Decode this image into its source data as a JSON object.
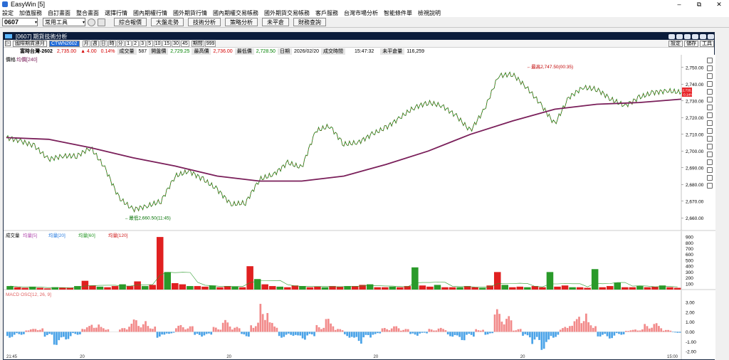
{
  "app": {
    "title": "EasyWin  [5]"
  },
  "window_controls": {
    "minimize": "–",
    "restore": "⧉",
    "close": "✕"
  },
  "menu": [
    "設定",
    "加值服務",
    "自訂畫面",
    "整合畫面",
    "選擇行情",
    "國內期權行情",
    "國外期貨行情",
    "國內期權交易帳務",
    "國外期貨交易帳務",
    "客戶服務",
    "台灣市場分析",
    "智能條件單",
    "檢視說明"
  ],
  "toolbar": {
    "symbol": "0607",
    "tool_combo": "常用工具",
    "buttons": [
      "綜合報價",
      "大盤走勢",
      "技術分析",
      "策略分析",
      "未平倉",
      "財務查詢"
    ]
  },
  "chart_window": {
    "title": "[0607] 期貨技術分析",
    "contract_select": "國際期貨連月",
    "contract_code": "CTWN2602",
    "period_buttons": [
      "月",
      "週",
      "日",
      "時",
      "分",
      "1",
      "2",
      "3",
      "5",
      "10",
      "15",
      "30",
      "45",
      "期間",
      "999"
    ],
    "right_buttons": [
      "設定",
      "儲存",
      "工具"
    ]
  },
  "quote": {
    "name": "富時台灣-2602",
    "last": "2,735.00",
    "change": "▲ 4.00",
    "pct": "0.14%",
    "volume_label": "成交量",
    "volume": "587",
    "open_label": "開盤價",
    "open": "2,729.25",
    "high_label": "最高價",
    "high": "2,736.00",
    "low_label": "最低價",
    "low": "2,728.50",
    "date_label": "日期",
    "date": "2026/02/20",
    "time_label": "成交時間",
    "time": "15:47:32",
    "oi_label": "未平倉量",
    "oi": "116,259"
  },
  "price_panel": {
    "legend_price": "價格",
    "legend_ma": "均價[240]",
    "high_note": "←最高2,747.50(00:35)",
    "low_note": "←最低2,660.50(11:45)",
    "tag_price": "2,735.00",
    "tag_pct": "0.14%",
    "y_ticks": [
      "2,750.00",
      "2,740.00",
      "2,730.00",
      "2,720.00",
      "2,710.00",
      "2,700.00",
      "2,690.00",
      "2,680.00",
      "2,670.00",
      "2,660.00"
    ]
  },
  "volume_panel": {
    "legend": [
      "成交量",
      "均量[5]",
      "均量[20]",
      "均量[60]",
      "均量[120]"
    ],
    "y_ticks": [
      "900",
      "800",
      "700",
      "600",
      "500",
      "400",
      "300",
      "200",
      "100"
    ]
  },
  "macd_panel": {
    "legend": "MACD OSC[12, 26, 9]",
    "y_ticks": [
      "3.00",
      "2.00",
      "1.00",
      "0.00",
      "-1.00",
      "-2.00"
    ]
  },
  "chart_data": [
    {
      "type": "line",
      "title": "",
      "ylim": [
        2655,
        2755
      ],
      "series": [
        {
          "name": "價格",
          "x": [
            0,
            20,
            40,
            60,
            80,
            100,
            120,
            140,
            160,
            180,
            200,
            220,
            240,
            260,
            280,
            300,
            320,
            340,
            360,
            380,
            400,
            420,
            440,
            460,
            480,
            500,
            520,
            540,
            560,
            580,
            600,
            620,
            640,
            660,
            680,
            700,
            720,
            740,
            760,
            780,
            800,
            820,
            840,
            860,
            880,
            900,
            920,
            940,
            960
          ],
          "values": [
            2708,
            2706,
            2703,
            2695,
            2697,
            2697,
            2702,
            2690,
            2672,
            2665,
            2667,
            2670,
            2685,
            2688,
            2683,
            2677,
            2668,
            2669,
            2683,
            2686,
            2693,
            2690,
            2712,
            2715,
            2704,
            2705,
            2710,
            2714,
            2720,
            2726,
            2729,
            2727,
            2721,
            2712,
            2725,
            2745,
            2746,
            2738,
            2728,
            2716,
            2732,
            2738,
            2737,
            2731,
            2727,
            2732,
            2735,
            2736,
            2735
          ]
        },
        {
          "name": "均價[240]",
          "x": [
            0,
            60,
            120,
            180,
            240,
            300,
            360,
            420,
            480,
            540,
            600,
            660,
            720,
            780,
            840,
            900,
            960
          ],
          "values": [
            2708,
            2707,
            2702,
            2696,
            2691,
            2685,
            2682,
            2682,
            2685,
            2692,
            2700,
            2710,
            2718,
            2725,
            2728,
            2729,
            2731
          ]
        }
      ],
      "high_point": {
        "value": 2747.5,
        "time": "00:35"
      },
      "low_point": {
        "value": 2660.5,
        "time": "11:45"
      }
    },
    {
      "type": "bar",
      "title": "",
      "ylim": [
        0,
        950
      ],
      "note": "volume bars (approximate)",
      "series": [
        {
          "name": "成交量",
          "values": [
            60,
            40,
            30,
            50,
            30,
            20,
            40,
            30,
            30,
            60,
            150,
            70,
            50,
            40,
            60,
            90,
            60,
            140,
            60,
            80,
            900,
            300,
            110,
            90,
            60,
            60,
            50,
            70,
            40,
            60,
            50,
            40,
            400,
            180,
            90,
            60,
            50,
            40,
            70,
            60,
            40,
            50,
            40,
            60,
            50,
            60,
            60,
            80,
            90,
            40,
            40,
            50,
            40,
            60,
            380,
            70,
            50,
            80,
            40,
            40,
            40,
            60,
            40,
            30,
            70,
            300,
            80,
            40,
            50,
            40,
            60,
            40,
            300,
            50,
            70,
            40,
            40,
            30,
            350,
            40,
            60,
            120,
            40,
            40,
            60,
            40,
            50,
            70,
            40,
            30
          ]
        }
      ]
    },
    {
      "type": "bar",
      "title": "",
      "ylim": [
        -2.5,
        3.5
      ],
      "series": [
        {
          "name": "MACD OSC",
          "values": [
            -0.6,
            -0.3,
            0.3,
            0.4,
            -0.5,
            -1.4,
            -0.8,
            -0.3,
            0.6,
            0.9,
            0.5,
            0.0,
            0.4,
            1.3,
            1.1,
            0.7,
            -0.6,
            -0.2,
            0.7,
            0.6,
            -0.5,
            -0.4,
            0.5,
            1.2,
            0.5,
            -0.5,
            1.0,
            3.0,
            1.0,
            -0.6,
            -0.4,
            -0.8,
            -0.5,
            0.7,
            1.4,
            0.3,
            -0.6,
            -1.2,
            -0.7,
            -0.3,
            0.4,
            0.6,
            0.3,
            -0.4,
            -0.2,
            0.3,
            0.4,
            -0.5,
            -0.9,
            -0.5,
            0.3,
            -0.3,
            2.3,
            1.6,
            0.3,
            -0.6,
            -1.3,
            -1.9,
            -0.6,
            0.5,
            1.3,
            2.1,
            1.0,
            -0.5,
            -0.7,
            -0.3,
            0.2,
            0.3,
            0.8,
            0.9,
            0.2,
            -0.1
          ]
        }
      ]
    }
  ],
  "x_axis": {
    "labels": [
      "21:45",
      "20",
      "",
      "20",
      "",
      "20",
      "",
      "20",
      "",
      "15:00"
    ]
  }
}
